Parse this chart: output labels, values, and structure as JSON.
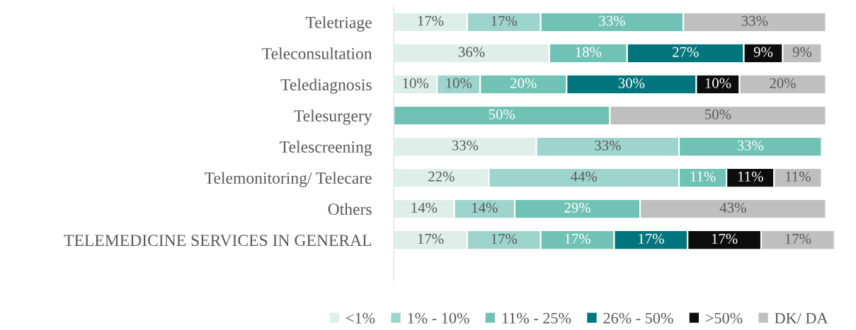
{
  "chart_data": {
    "type": "bar",
    "orientation": "horizontal",
    "stacked": true,
    "legend": "bottom",
    "tick_labels": "y",
    "categories": [
      "Teletriage",
      "Teleconsultation",
      "Telediagnosis",
      "Telesurgery",
      "Telescreening",
      "Telemonitoring/ Telecare",
      "Others",
      "TELEMEDICINE SERVICES IN GENERAL"
    ],
    "series": [
      {
        "name": "<1%",
        "color": "#deefea",
        "values": [
          17,
          36,
          10,
          null,
          33,
          22,
          14,
          17
        ],
        "value_labels": [
          "17%",
          "36%",
          "10%",
          null,
          "33%",
          "22%",
          "14%",
          "17%"
        ]
      },
      {
        "name": "1% - 10%",
        "color": "#9dd5cc",
        "values": [
          17,
          null,
          10,
          null,
          33,
          44,
          14,
          17
        ],
        "value_labels": [
          "17%",
          null,
          "10%",
          null,
          "33%",
          "44%",
          "14%",
          "17%"
        ]
      },
      {
        "name": "11% - 25%",
        "color": "#70c2b4",
        "values": [
          33,
          18,
          20,
          50,
          33,
          11,
          29,
          17
        ],
        "value_labels": [
          "33%",
          "18%",
          "20%",
          "50%",
          "33%",
          "11%",
          "29%",
          "17%"
        ]
      },
      {
        "name": "26% - 50%",
        "color": "#00757e",
        "values": [
          null,
          27,
          30,
          null,
          null,
          null,
          null,
          17
        ],
        "value_labels": [
          null,
          "27%",
          "30%",
          null,
          null,
          null,
          null,
          "17%"
        ]
      },
      {
        "name": ">50%",
        "color": "#0d0d0d",
        "values": [
          null,
          9,
          10,
          null,
          null,
          11,
          null,
          17
        ],
        "value_labels": [
          null,
          "9%",
          "10%",
          null,
          null,
          "11%",
          null,
          "17%"
        ]
      },
      {
        "name": "DK/ DA",
        "color": "#bfbfbf",
        "values": [
          33,
          9,
          20,
          50,
          null,
          11,
          43,
          17
        ],
        "value_labels": [
          "33%",
          "9%",
          "20%",
          "50%",
          null,
          "11%",
          "43%",
          "17%"
        ]
      }
    ]
  }
}
